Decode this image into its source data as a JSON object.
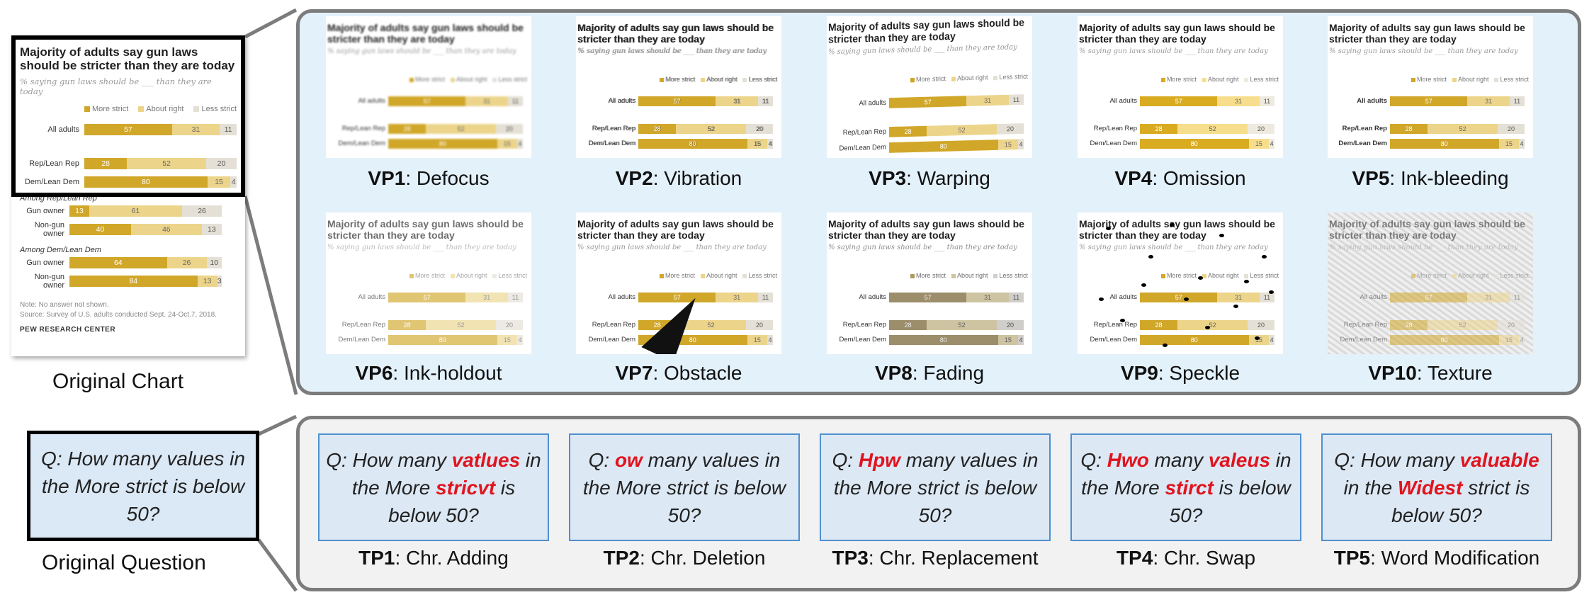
{
  "original_chart": {
    "title": "Majority of adults say gun laws should be stricter than they are today",
    "subtitle": "% saying gun laws should be ___ than they are today",
    "legend": [
      "More strict",
      "About right",
      "Less strict"
    ],
    "rows": [
      {
        "label": "All adults",
        "values": [
          "57",
          "31",
          "11"
        ]
      },
      {
        "label": "Rep/Lean Rep",
        "values": [
          "28",
          "52",
          "20"
        ]
      },
      {
        "label": "Dem/Lean Dem",
        "values": [
          "80",
          "15",
          "4"
        ]
      }
    ],
    "group1_label": "Among Rep/Lean Rep",
    "group1_rows": [
      {
        "label": "Gun owner",
        "values": [
          "13",
          "61",
          "26"
        ]
      },
      {
        "label": "Non-gun owner",
        "values": [
          "40",
          "46",
          "13"
        ]
      }
    ],
    "group2_label": "Among Dem/Lean Dem",
    "group2_rows": [
      {
        "label": "Gun owner",
        "values": [
          "64",
          "26",
          "10"
        ]
      },
      {
        "label": "Non-gun owner",
        "values": [
          "84",
          "13",
          "3"
        ]
      }
    ],
    "note": "Note: No answer not shown.",
    "source": "Source: Survey of U.S. adults conducted Sept. 24-Oct.7, 2018.",
    "brand": "PEW RESEARCH CENTER",
    "caption": "Original Chart",
    "colors": {
      "more": "#d1a729",
      "about": "#ecd58b",
      "less": "#e4e0d6"
    }
  },
  "visual_perturbations": [
    {
      "code": "VP1",
      "name": ": Defocus"
    },
    {
      "code": "VP2",
      "name": ": Vibration"
    },
    {
      "code": "VP3",
      "name": ": Warping"
    },
    {
      "code": "VP4",
      "name": ": Omission"
    },
    {
      "code": "VP5",
      "name": ": Ink-bleeding"
    },
    {
      "code": "VP6",
      "name": ": Ink-holdout"
    },
    {
      "code": "VP7",
      "name": ": Obstacle"
    },
    {
      "code": "VP8",
      "name": ": Fading"
    },
    {
      "code": "VP9",
      "name": ": Speckle"
    },
    {
      "code": "VP10",
      "name": ": Texture"
    }
  ],
  "original_question": {
    "text": "Q: How many values in the More strict is below 50?",
    "caption": "Original Question"
  },
  "text_perturbations": [
    {
      "code": "TP1",
      "name": ": Chr. Adding",
      "q": {
        "p1": "Q: How many ",
        "e1": "vatlues",
        "p2": " in the More ",
        "e2": "stricvt",
        "p3": " is below 50?"
      }
    },
    {
      "code": "TP2",
      "name": ": Chr. Deletion",
      "q": {
        "p1": "Q: ",
        "e1": "ow",
        "p2": " many values in the More strict is below 50?",
        "e2": "",
        "p3": ""
      }
    },
    {
      "code": "TP3",
      "name": ": Chr. Replacement",
      "q": {
        "p1": "Q: ",
        "e1": "Hpw",
        "p2": " many values in the More strict is below 50?",
        "e2": "",
        "p3": ""
      }
    },
    {
      "code": "TP4",
      "name": ": Chr. Swap",
      "q": {
        "p1": "Q: ",
        "e1": "Hwo",
        "p2": " many ",
        "e2": "valeus",
        "p3": " in the More ",
        "e3": "stirct",
        "p4": " is below 50?"
      }
    },
    {
      "code": "TP5",
      "name": ": Word Modification",
      "q": {
        "p1": "Q: How many ",
        "e1": "valuable",
        "p2": " in the ",
        "e2": "Widest",
        "p3": " strict is below 50?"
      }
    }
  ]
}
